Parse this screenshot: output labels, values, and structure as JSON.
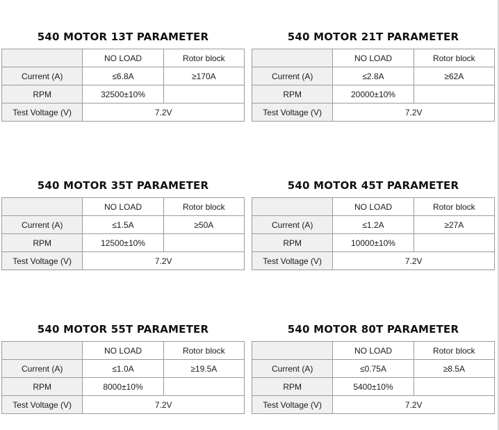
{
  "headers": {
    "no_load": "NO LOAD",
    "rotor_block": "Rotor block"
  },
  "row_labels": {
    "current": "Current (A)",
    "rpm": "RPM",
    "voltage": "Test Voltage (V)"
  },
  "panels": [
    {
      "title": "540 MOTOR 13T PARAMETER",
      "current_no_load": "≤6.8A",
      "current_rotor": "≥170A",
      "rpm": "32500±10%",
      "voltage": "7.2V"
    },
    {
      "title": "540 MOTOR 21T PARAMETER",
      "current_no_load": "≤2.8A",
      "current_rotor": "≥62A",
      "rpm": "20000±10%",
      "voltage": "7.2V"
    },
    {
      "title": "540 MOTOR 35T PARAMETER",
      "current_no_load": "≤1.5A",
      "current_rotor": "≥50A",
      "rpm": "12500±10%",
      "voltage": "7.2V"
    },
    {
      "title": "540 MOTOR 45T PARAMETER",
      "current_no_load": "≤1.2A",
      "current_rotor": "≥27A",
      "rpm": "10000±10%",
      "voltage": "7.2V"
    },
    {
      "title": "540 MOTOR 55T PARAMETER",
      "current_no_load": "≤1.0A",
      "current_rotor": "≥19.5A",
      "rpm": "8000±10%",
      "voltage": "7.2V"
    },
    {
      "title": "540 MOTOR 80T PARAMETER",
      "current_no_load": "≤0.75A",
      "current_rotor": "≥8.5A",
      "rpm": "5400±10%",
      "voltage": "7.2V"
    }
  ]
}
